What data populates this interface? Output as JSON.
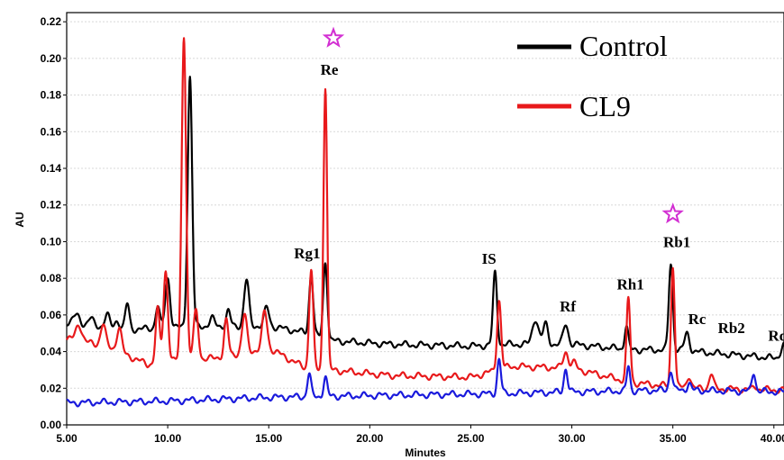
{
  "chart_data": {
    "type": "line",
    "title": "",
    "xlabel": "Minutes",
    "ylabel": "AU",
    "xlim": [
      5.0,
      40.5
    ],
    "ylim": [
      0.0,
      0.225
    ],
    "x_ticks": [
      5,
      10,
      15,
      20,
      25,
      30,
      35,
      40
    ],
    "x_tick_labels": [
      "5.00",
      "10.00",
      "15.00",
      "20.00",
      "25.00",
      "30.00",
      "35.00",
      "40.00"
    ],
    "y_ticks": [
      0,
      0.02,
      0.04,
      0.06,
      0.08,
      0.1,
      0.12,
      0.14,
      0.16,
      0.18,
      0.2,
      0.22
    ],
    "y_tick_labels": [
      "0.00",
      "0.02",
      "0.04",
      "0.06",
      "0.08",
      "0.10",
      "0.12",
      "0.14",
      "0.16",
      "0.18",
      "0.20",
      "0.22"
    ],
    "legend": {
      "placement": "top-right"
    },
    "series": [
      {
        "name": "Control",
        "color": "#000000",
        "baseline": [
          [
            5,
            0.056
          ],
          [
            8,
            0.052
          ],
          [
            12,
            0.054
          ],
          [
            15,
            0.054
          ],
          [
            17,
            0.05
          ],
          [
            18,
            0.046
          ],
          [
            21,
            0.044
          ],
          [
            25,
            0.043
          ],
          [
            27,
            0.044
          ],
          [
            30,
            0.044
          ],
          [
            33,
            0.041
          ],
          [
            35,
            0.041
          ],
          [
            40.5,
            0.036
          ]
        ],
        "peaks": [
          [
            5.5,
            0.06,
            0.15
          ],
          [
            6.2,
            0.058,
            0.12
          ],
          [
            7.0,
            0.06,
            0.12
          ],
          [
            7.5,
            0.057,
            0.12
          ],
          [
            8.0,
            0.066,
            0.1
          ],
          [
            9.5,
            0.065,
            0.1
          ],
          [
            10.0,
            0.08,
            0.12
          ],
          [
            11.1,
            0.19,
            0.11
          ],
          [
            12.2,
            0.058,
            0.12
          ],
          [
            13.0,
            0.062,
            0.1
          ],
          [
            13.9,
            0.079,
            0.12
          ],
          [
            14.9,
            0.064,
            0.12
          ],
          [
            17.1,
            0.082,
            0.1
          ],
          [
            17.8,
            0.089,
            0.1
          ],
          [
            26.2,
            0.083,
            0.1
          ],
          [
            28.2,
            0.058,
            0.15
          ],
          [
            28.7,
            0.055,
            0.12
          ],
          [
            29.7,
            0.055,
            0.12
          ],
          [
            32.7,
            0.054,
            0.09
          ],
          [
            34.9,
            0.088,
            0.1
          ],
          [
            35.7,
            0.05,
            0.12
          ],
          [
            40.5,
            0.044,
            0.15
          ]
        ]
      },
      {
        "name": "CL9",
        "color": "#e8191b",
        "baseline": [
          [
            5,
            0.047
          ],
          [
            7,
            0.043
          ],
          [
            9,
            0.033
          ],
          [
            10,
            0.035
          ],
          [
            12,
            0.036
          ],
          [
            15,
            0.042
          ],
          [
            17,
            0.03
          ],
          [
            18,
            0.03
          ],
          [
            21,
            0.027
          ],
          [
            25,
            0.026
          ],
          [
            27,
            0.032
          ],
          [
            30,
            0.031
          ],
          [
            33,
            0.023
          ],
          [
            36,
            0.02
          ],
          [
            40.5,
            0.019
          ]
        ],
        "peaks": [
          [
            5.6,
            0.055,
            0.15
          ],
          [
            6.8,
            0.055,
            0.12
          ],
          [
            7.6,
            0.053,
            0.12
          ],
          [
            9.5,
            0.063,
            0.1
          ],
          [
            9.9,
            0.084,
            0.11
          ],
          [
            10.8,
            0.213,
            0.11
          ],
          [
            11.4,
            0.062,
            0.12
          ],
          [
            12.9,
            0.057,
            0.1
          ],
          [
            13.8,
            0.06,
            0.12
          ],
          [
            14.8,
            0.062,
            0.12
          ],
          [
            17.1,
            0.085,
            0.1
          ],
          [
            17.8,
            0.185,
            0.09
          ],
          [
            26.4,
            0.068,
            0.1
          ],
          [
            29.7,
            0.04,
            0.12
          ],
          [
            30.1,
            0.034,
            0.12
          ],
          [
            32.8,
            0.069,
            0.09
          ],
          [
            35.0,
            0.087,
            0.09
          ],
          [
            35.8,
            0.027,
            0.1
          ],
          [
            36.9,
            0.028,
            0.1
          ],
          [
            39.1,
            0.021,
            0.1
          ]
        ]
      },
      {
        "name": "",
        "color": "#1a1adc",
        "baseline": [
          [
            5,
            0.012
          ],
          [
            10,
            0.013
          ],
          [
            15,
            0.015
          ],
          [
            20,
            0.016
          ],
          [
            26,
            0.017
          ],
          [
            30,
            0.018
          ],
          [
            35,
            0.019
          ],
          [
            40.5,
            0.018
          ]
        ],
        "peaks": [
          [
            17.0,
            0.028,
            0.09
          ],
          [
            17.8,
            0.026,
            0.09
          ],
          [
            26.4,
            0.036,
            0.09
          ],
          [
            29.7,
            0.031,
            0.09
          ],
          [
            32.8,
            0.032,
            0.08
          ],
          [
            34.9,
            0.03,
            0.09
          ],
          [
            35.8,
            0.023,
            0.09
          ],
          [
            39.0,
            0.029,
            0.09
          ]
        ]
      }
    ],
    "annotations": [
      {
        "text": "Re",
        "x": 18.0,
        "y": 0.191
      },
      {
        "text": "Rg1",
        "x": 16.9,
        "y": 0.091
      },
      {
        "text": "IS",
        "x": 25.9,
        "y": 0.088
      },
      {
        "text": "Rf",
        "x": 29.8,
        "y": 0.062
      },
      {
        "text": "Rh1",
        "x": 32.9,
        "y": 0.074
      },
      {
        "text": "Rb1",
        "x": 35.2,
        "y": 0.097
      },
      {
        "text": "Rc",
        "x": 36.2,
        "y": 0.055
      },
      {
        "text": "Rb2",
        "x": 37.9,
        "y": 0.05
      },
      {
        "text": "Rd",
        "x": 40.2,
        "y": 0.046
      }
    ],
    "markers": [
      {
        "type": "star",
        "color": "#d22ed2",
        "x": 18.2,
        "y": 0.211
      },
      {
        "type": "star",
        "color": "#d22ed2",
        "x": 35.0,
        "y": 0.115
      }
    ]
  }
}
